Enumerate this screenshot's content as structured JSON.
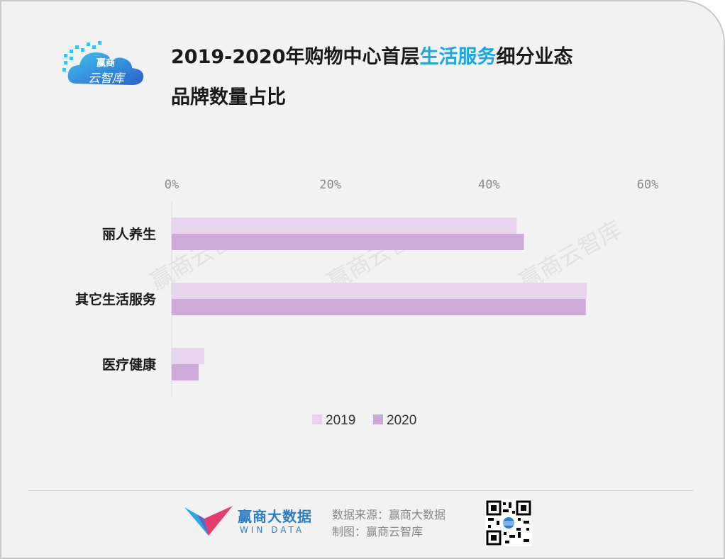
{
  "logo": {
    "line1": "赢商",
    "line2": "云智库"
  },
  "title": {
    "part1": "2019-2020年购物中心首层",
    "highlight": "生活服务",
    "part2": "细分业态",
    "line2": "品牌数量占比"
  },
  "colors": {
    "series_2019": "#e6d5ec",
    "series_2020": "#ceaad8",
    "highlight": "#1ea6df",
    "brand": "#2e7fc2"
  },
  "chart_data": {
    "type": "bar",
    "orientation": "horizontal",
    "categories": [
      "丽人养生",
      "其它生活服务",
      "医疗健康"
    ],
    "series": [
      {
        "name": "2019",
        "values": [
          43.5,
          52.3,
          4.1
        ]
      },
      {
        "name": "2020",
        "values": [
          44.4,
          52.2,
          3.4
        ]
      }
    ],
    "xlim": [
      0,
      60
    ],
    "xticks": [
      "0%",
      "20%",
      "40%",
      "60%"
    ],
    "legend_position": "bottom",
    "grid": false,
    "watermark": "赢商云智库"
  },
  "footer": {
    "brand_cn": "赢商大数据",
    "brand_en": "WIN DATA",
    "source": "数据来源：赢商大数据",
    "maker": "制图：赢商云智库"
  }
}
